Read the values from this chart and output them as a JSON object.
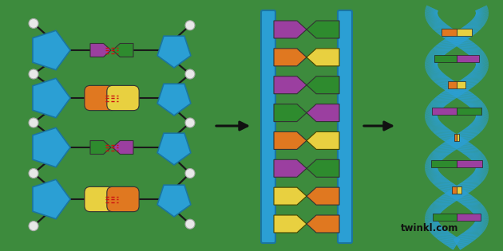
{
  "bg_color": "#3d8b3d",
  "watermark": "twinkl.com",
  "colors": {
    "blue": "#2b9fd4",
    "blue_dark": "#1a75a0",
    "blue_mid": "#1e8abf",
    "purple": "#9b3fa0",
    "green_dark": "#2e8b2e",
    "orange": "#e07820",
    "yellow": "#e8d040",
    "red": "#cc1111",
    "white": "#f0f0f0",
    "black": "#111111"
  },
  "p1_rows": [
    {
      "type": "arrow",
      "left": "purple",
      "right": "green_dark"
    },
    {
      "type": "pill",
      "left": "orange",
      "right": "yellow"
    },
    {
      "type": "arrow",
      "left": "green_dark",
      "right": "purple"
    },
    {
      "type": "pill",
      "left": "yellow",
      "right": "orange"
    }
  ],
  "p2_rows": [
    {
      "left": "purple",
      "right": "green_dark"
    },
    {
      "left": "orange",
      "right": "yellow"
    },
    {
      "left": "purple",
      "right": "green_dark"
    },
    {
      "left": "green_dark",
      "right": "purple"
    },
    {
      "left": "orange",
      "right": "yellow"
    },
    {
      "left": "purple",
      "right": "green_dark"
    },
    {
      "left": "yellow",
      "right": "orange"
    },
    {
      "left": "yellow",
      "right": "orange"
    }
  ],
  "p3_pairs": [
    {
      "left": "green_dark",
      "right": "purple"
    },
    {
      "left": "orange",
      "right": "yellow"
    },
    {
      "left": "green_dark",
      "right": "purple"
    },
    {
      "left": "orange",
      "right": "yellow"
    },
    {
      "left": "purple",
      "right": "green_dark"
    },
    {
      "left": "orange",
      "right": "yellow"
    },
    {
      "left": "green_dark",
      "right": "purple"
    },
    {
      "left": "orange",
      "right": "yellow"
    }
  ]
}
